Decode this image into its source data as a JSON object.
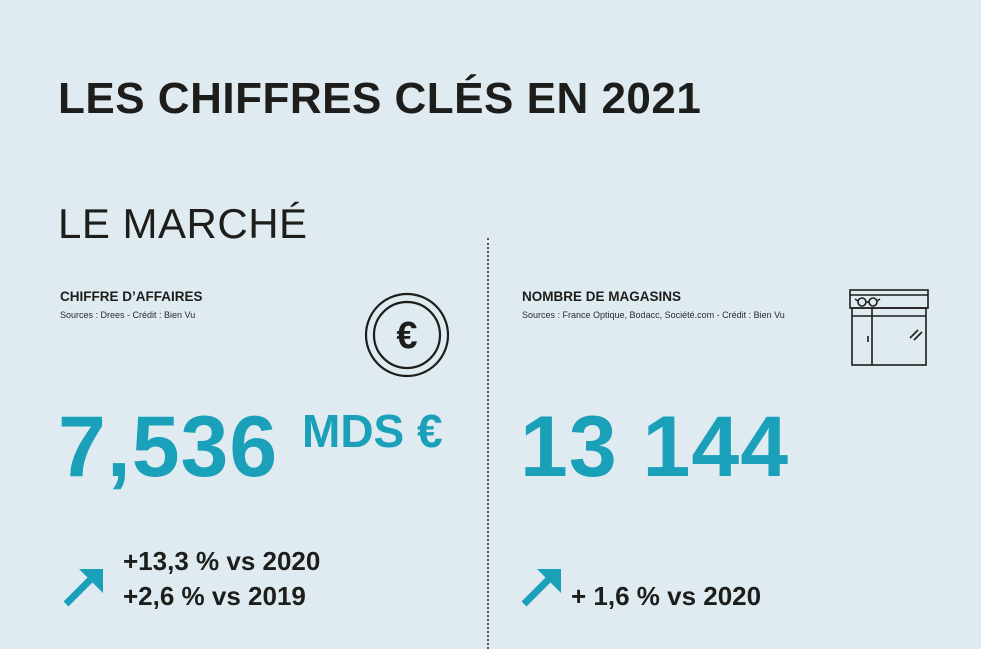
{
  "title": "LES CHIFFRES CLÉS EN 2021",
  "section": "LE MARCHÉ",
  "revenue": {
    "label": "CHIFFRE D’AFFAIRES",
    "source": "Sources : Drees - Crédit : Bien Vu",
    "value": "7,536",
    "unit": "MDS €",
    "icon": "euro-coin-icon",
    "growth": [
      "+13,3 % vs 2020",
      "+2,6 % vs 2019"
    ]
  },
  "stores": {
    "label": "NOMBRE DE MAGASINS",
    "source": "Sources : France Optique, Bodacc, Société.com - Crédit : Bien Vu",
    "value": "13 144",
    "icon": "optician-store-icon",
    "growth": [
      "+ 1,6 % vs 2020"
    ]
  },
  "colors": {
    "background": "#dfeaf1",
    "accent": "#1aa0b8",
    "text": "#1d1d1b"
  }
}
